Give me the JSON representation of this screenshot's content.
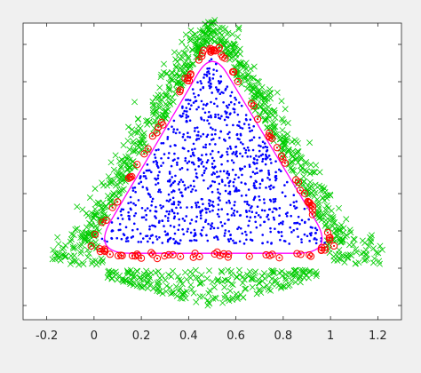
{
  "chart_data": {
    "type": "scatter",
    "title": "",
    "xlabel": "",
    "ylabel": "",
    "xlim": [
      -0.3,
      1.3
    ],
    "ylim": [
      -0.25,
      1.0
    ],
    "grid": false,
    "x_ticks": [
      "-0.2",
      "0",
      "0.2",
      "0.4",
      "0.6",
      "0.8",
      "1",
      "1.2"
    ],
    "x_tick_values": [
      -0.2,
      0,
      0.2,
      0.4,
      0.6,
      0.8,
      1.0,
      1.2
    ],
    "series": [
      {
        "marker": "x",
        "color": "#00cc00",
        "regions": [
          {
            "shape": "triangle-band",
            "side": "left",
            "from": [
              0.0,
              0.05
            ],
            "to": [
              0.5,
              0.92
            ]
          },
          {
            "shape": "triangle-band",
            "side": "right",
            "from": [
              0.5,
              0.92
            ],
            "to": [
              1.0,
              0.05
            ]
          },
          {
            "shape": "triangle-band",
            "side": "bottom",
            "from": [
              0.0,
              -0.1
            ],
            "to": [
              1.0,
              -0.1
            ]
          }
        ]
      },
      {
        "marker": "dot",
        "color": "#0000ff",
        "region": {
          "shape": "triangle",
          "vertices": [
            [
              0.0,
              0.05
            ],
            [
              1.0,
              0.05
            ],
            [
              0.5,
              0.87
            ]
          ]
        }
      },
      {
        "marker": "circle-dot",
        "color": "#ff0000",
        "region": {
          "shape": "boundary",
          "vertices": [
            [
              0.0,
              0.05
            ],
            [
              1.0,
              0.05
            ],
            [
              0.5,
              0.88
            ]
          ]
        }
      }
    ],
    "boundary": {
      "color": "#ff00ff",
      "shape": "rounded-triangle",
      "vertices": [
        [
          -0.01,
          0.03
        ],
        [
          1.02,
          0.03
        ],
        [
          0.5,
          0.89
        ]
      ]
    }
  }
}
